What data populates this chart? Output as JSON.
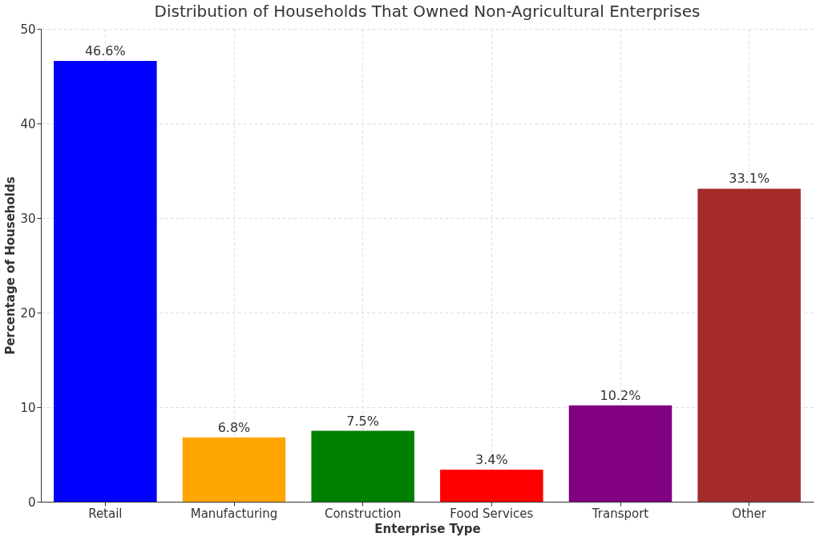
{
  "chart_data": {
    "type": "bar",
    "title": "Distribution of Households That Owned Non-Agricultural Enterprises",
    "xlabel": "Enterprise Type",
    "ylabel": "Percentage of Households",
    "categories": [
      "Retail",
      "Manufacturing",
      "Construction",
      "Food Services",
      "Transport",
      "Other"
    ],
    "values": [
      46.6,
      6.8,
      7.5,
      3.4,
      10.2,
      33.1
    ],
    "colors": [
      "#0000ff",
      "#ffa500",
      "#008000",
      "#ff0000",
      "#800080",
      "#a52a2a"
    ],
    "value_labels": [
      "46.6%",
      "6.8%",
      "7.5%",
      "3.4%",
      "10.2%",
      "33.1%"
    ],
    "ylim": [
      0,
      50
    ],
    "yticks": [
      0,
      10,
      20,
      30,
      40,
      50
    ],
    "grid": true
  }
}
